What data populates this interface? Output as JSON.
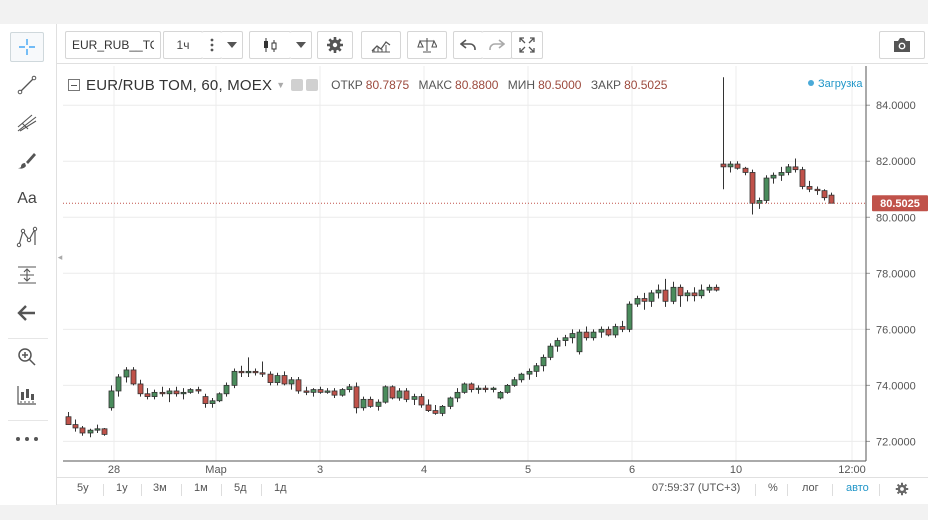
{
  "toolbar": {
    "symbol": "EUR_RUB__TOM",
    "interval": "1ч"
  },
  "left_tools": [
    {
      "name": "crosshair-icon"
    },
    {
      "name": "trend-line-icon"
    },
    {
      "name": "pitchfork-icon"
    },
    {
      "name": "brush-icon"
    },
    {
      "name": "text-tool-icon",
      "label": "Aa"
    },
    {
      "name": "pattern-icon"
    },
    {
      "name": "measure-icon"
    },
    {
      "name": "arrow-left-icon"
    },
    {
      "name": "zoom-in-icon"
    },
    {
      "name": "ruler-icon"
    },
    {
      "name": "more-icon"
    }
  ],
  "header": {
    "title": "EUR/RUB TOM, 60, MOEX",
    "open_label": "ОТКР",
    "open": "80.7875",
    "high_label": "МАКС",
    "high": "80.8800",
    "low_label": "МИН",
    "low": "80.5000",
    "close_label": "ЗАКР",
    "close": "80.5025",
    "loading": "Загрузка"
  },
  "bottom_bar": {
    "ranges": [
      "5y",
      "1y",
      "3м",
      "1м",
      "5д",
      "1д"
    ],
    "time": "07:59:37 (UTC+3)",
    "percent": "%",
    "log": "лог",
    "auto": "авто"
  },
  "colors": {
    "up": "#4a8c5c",
    "down": "#c0524a",
    "grid": "#ececec",
    "accent": "#2196c8"
  },
  "chart_data": {
    "type": "candlestick",
    "ylim": [
      71.3,
      85.4
    ],
    "y_ticks": [
      "84.0000",
      "82.0000",
      "80.0000",
      "78.0000",
      "76.0000",
      "74.0000",
      "72.0000"
    ],
    "x_ticks": [
      "28",
      "Мар",
      "3",
      "4",
      "5",
      "6",
      "10",
      "12:00"
    ],
    "last_price_label": "80.5025",
    "candles": [
      [
        72.88,
        73.05,
        72.6,
        72.6
      ],
      [
        72.6,
        72.78,
        72.35,
        72.48
      ],
      [
        72.48,
        72.55,
        72.2,
        72.3
      ],
      [
        72.3,
        72.45,
        72.15,
        72.4
      ],
      [
        72.4,
        72.6,
        72.3,
        72.45
      ],
      [
        72.45,
        72.48,
        72.2,
        72.25
      ],
      [
        73.2,
        74.0,
        73.1,
        73.8
      ],
      [
        73.8,
        74.4,
        73.6,
        74.3
      ],
      [
        74.3,
        74.65,
        74.1,
        74.55
      ],
      [
        74.55,
        74.65,
        74.0,
        74.05
      ],
      [
        74.05,
        74.2,
        73.6,
        73.7
      ],
      [
        73.7,
        73.9,
        73.5,
        73.6
      ],
      [
        73.6,
        73.85,
        73.5,
        73.75
      ],
      [
        73.75,
        73.95,
        73.6,
        73.7
      ],
      [
        73.7,
        73.9,
        73.4,
        73.8
      ],
      [
        73.8,
        73.95,
        73.6,
        73.7
      ],
      [
        73.7,
        73.9,
        73.5,
        73.75
      ],
      [
        73.75,
        73.9,
        73.7,
        73.85
      ],
      [
        73.85,
        73.95,
        73.7,
        73.8
      ],
      [
        73.6,
        73.7,
        73.2,
        73.35
      ],
      [
        73.35,
        73.55,
        73.2,
        73.45
      ],
      [
        73.45,
        73.75,
        73.4,
        73.7
      ],
      [
        73.7,
        74.1,
        73.6,
        74.0
      ],
      [
        74.0,
        74.6,
        73.9,
        74.5
      ],
      [
        74.5,
        74.7,
        74.3,
        74.45
      ],
      [
        74.45,
        75.0,
        74.3,
        74.5
      ],
      [
        74.5,
        74.6,
        74.35,
        74.45
      ],
      [
        74.45,
        74.85,
        74.3,
        74.4
      ],
      [
        74.4,
        74.5,
        74.0,
        74.1
      ],
      [
        74.1,
        74.45,
        74.0,
        74.35
      ],
      [
        74.35,
        74.5,
        74.0,
        74.05
      ],
      [
        74.05,
        74.3,
        73.85,
        74.2
      ],
      [
        74.2,
        74.3,
        73.7,
        73.8
      ],
      [
        73.8,
        73.95,
        73.65,
        73.75
      ],
      [
        73.75,
        73.9,
        73.6,
        73.85
      ],
      [
        73.85,
        73.95,
        73.7,
        73.75
      ],
      [
        73.75,
        73.9,
        73.7,
        73.8
      ],
      [
        73.8,
        73.9,
        73.55,
        73.65
      ],
      [
        73.65,
        73.9,
        73.6,
        73.85
      ],
      [
        73.85,
        74.05,
        73.75,
        73.95
      ],
      [
        73.95,
        74.1,
        73.0,
        73.2
      ],
      [
        73.2,
        73.6,
        73.1,
        73.5
      ],
      [
        73.5,
        73.6,
        73.2,
        73.25
      ],
      [
        73.25,
        73.5,
        73.1,
        73.4
      ],
      [
        73.4,
        74.0,
        73.35,
        73.95
      ],
      [
        73.95,
        74.0,
        73.5,
        73.55
      ],
      [
        73.55,
        73.9,
        73.45,
        73.8
      ],
      [
        73.8,
        73.9,
        73.4,
        73.5
      ],
      [
        73.5,
        73.7,
        73.3,
        73.6
      ],
      [
        73.6,
        73.7,
        73.2,
        73.3
      ],
      [
        73.3,
        73.5,
        73.05,
        73.1
      ],
      [
        73.1,
        73.3,
        72.95,
        73.0
      ],
      [
        73.0,
        73.3,
        72.9,
        73.25
      ],
      [
        73.25,
        73.6,
        73.15,
        73.55
      ],
      [
        73.55,
        73.9,
        73.4,
        73.75
      ],
      [
        73.75,
        74.1,
        73.7,
        74.05
      ],
      [
        74.05,
        74.1,
        73.75,
        73.85
      ],
      [
        73.85,
        74.0,
        73.7,
        73.9
      ],
      [
        73.9,
        74.0,
        73.75,
        73.85
      ],
      [
        73.85,
        73.95,
        73.75,
        73.9
      ],
      [
        73.55,
        73.8,
        73.5,
        73.75
      ],
      [
        73.75,
        74.05,
        73.7,
        74.0
      ],
      [
        74.0,
        74.3,
        73.95,
        74.2
      ],
      [
        74.2,
        74.45,
        74.1,
        74.4
      ],
      [
        74.4,
        74.6,
        74.2,
        74.5
      ],
      [
        74.5,
        74.8,
        74.3,
        74.7
      ],
      [
        74.7,
        75.1,
        74.5,
        75.0
      ],
      [
        75.0,
        75.5,
        74.9,
        75.4
      ],
      [
        75.4,
        75.7,
        75.2,
        75.6
      ],
      [
        75.6,
        75.8,
        75.4,
        75.7
      ],
      [
        75.7,
        76.0,
        75.5,
        75.85
      ],
      [
        75.2,
        76.0,
        75.1,
        75.9
      ],
      [
        75.9,
        76.1,
        75.6,
        75.7
      ],
      [
        75.7,
        76.0,
        75.6,
        75.9
      ],
      [
        75.9,
        76.1,
        75.7,
        76.0
      ],
      [
        76.0,
        76.1,
        75.75,
        75.8
      ],
      [
        75.8,
        76.2,
        75.7,
        76.1
      ],
      [
        76.1,
        76.3,
        75.9,
        76.0
      ],
      [
        76.0,
        77.0,
        75.9,
        76.9
      ],
      [
        76.9,
        77.2,
        76.8,
        77.1
      ],
      [
        77.1,
        77.3,
        76.7,
        77.0
      ],
      [
        77.0,
        77.4,
        76.8,
        77.3
      ],
      [
        77.3,
        77.6,
        77.1,
        77.4
      ],
      [
        77.4,
        77.8,
        76.8,
        77.0
      ],
      [
        77.0,
        77.7,
        76.9,
        77.5
      ],
      [
        77.5,
        77.6,
        76.8,
        77.2
      ],
      [
        77.2,
        77.4,
        77.0,
        77.3
      ],
      [
        77.3,
        77.5,
        77.0,
        77.2
      ],
      [
        77.2,
        77.6,
        77.1,
        77.4
      ],
      [
        77.4,
        77.6,
        77.3,
        77.5
      ],
      [
        77.5,
        77.6,
        77.35,
        77.4
      ],
      [
        81.9,
        85.0,
        81.0,
        81.8
      ],
      [
        81.8,
        82.0,
        81.6,
        81.9
      ],
      [
        81.9,
        82.0,
        81.7,
        81.75
      ],
      [
        81.75,
        81.8,
        81.5,
        81.6
      ],
      [
        81.6,
        81.7,
        80.1,
        80.5
      ],
      [
        80.5,
        80.7,
        80.3,
        80.6
      ],
      [
        80.6,
        81.5,
        80.5,
        81.4
      ],
      [
        81.4,
        81.6,
        81.2,
        81.5
      ],
      [
        81.5,
        81.8,
        81.3,
        81.6
      ],
      [
        81.6,
        81.9,
        81.5,
        81.8
      ],
      [
        81.8,
        82.1,
        81.6,
        81.7
      ],
      [
        81.7,
        81.8,
        81.0,
        81.1
      ],
      [
        81.1,
        81.3,
        80.9,
        81.0
      ],
      [
        81.0,
        81.1,
        80.8,
        80.95
      ],
      [
        80.95,
        81.0,
        80.6,
        80.7
      ],
      [
        80.79,
        80.88,
        80.5,
        80.5025
      ]
    ]
  }
}
